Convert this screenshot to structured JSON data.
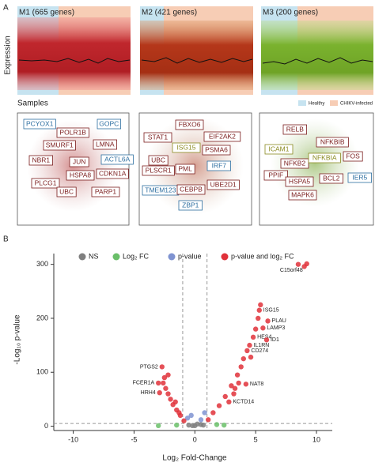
{
  "panel_a": {
    "label": "A",
    "y_label": "Expression",
    "x_label": "Samples",
    "legend": [
      "Healthy",
      "CHIKV-infected"
    ],
    "modules": [
      {
        "title": "M1 (665 genes)",
        "genes": [
          "PCYOX1",
          "POLR1B",
          "GOPC",
          "SMURF1",
          "LMNA",
          "NBR1",
          "JUN",
          "ACTL6A",
          "HSPA8",
          "CDKN1A",
          "PLCG1",
          "UBC",
          "PARP1"
        ]
      },
      {
        "title": "M2 (421 genes)",
        "genes": [
          "FBXO6",
          "STAT1",
          "EIF2AK2",
          "ISG15",
          "PSMA6",
          "UBC",
          "PLSCR1",
          "PML",
          "IRF7",
          "UBE2D1",
          "TMEM123",
          "CEBPB",
          "ZBP1"
        ]
      },
      {
        "title": "M3 (200 genes)",
        "genes": [
          "RELB",
          "ICAM1",
          "NFKBIB",
          "NFKB2",
          "NFKBIA",
          "FOS",
          "PPIF",
          "HSPA5",
          "BCL2",
          "IER5",
          "MAPK6"
        ]
      }
    ]
  },
  "chart_data": {
    "type": "scatter",
    "panel_label": "B",
    "xlabel": "Log₂ Fold-Change",
    "ylabel": "-Log₁₀ p-value",
    "xlim": [
      -11.6,
      11.3
    ],
    "ylim": [
      -8,
      320
    ],
    "xticks": [
      -10,
      -5,
      0,
      5,
      10
    ],
    "yticks": [
      0,
      100,
      200,
      300
    ],
    "threshold_x": [
      -1,
      1
    ],
    "threshold_y": 5,
    "series": [
      {
        "name": "NS",
        "color": "#7f7f7f",
        "x": [
          0,
          0.5,
          -0.5,
          0.2,
          -0.2,
          0.7
        ],
        "values": [
          1,
          3,
          2,
          4,
          1,
          2
        ]
      },
      {
        "name": "Log₂ FC",
        "color": "#6abf69",
        "x": [
          -1.5,
          1.8,
          -3,
          2.4
        ],
        "values": [
          2,
          3,
          1,
          2
        ]
      },
      {
        "name": "p-value",
        "color": "#7f93d1",
        "x": [
          -0.6,
          0.5,
          -0.3,
          0.8
        ],
        "values": [
          15,
          12,
          20,
          25
        ]
      },
      {
        "name": "p-value and log₂ FC",
        "color": "#e0313a",
        "x": [
          -0.9,
          -1.2,
          -1.5,
          -1.8,
          -2,
          -2.2,
          -2.4,
          -2.6,
          -2.5,
          -2.7,
          -2.2,
          -1.6,
          -1.3,
          -3,
          -2.9,
          1.1,
          1.5,
          2,
          2.5,
          3,
          3.5,
          3.8,
          4,
          4.3,
          4.5,
          4.8,
          5,
          5.2,
          5.3,
          5.4,
          6,
          5.6,
          5.9,
          4.6,
          4.2,
          3.6,
          3.2,
          2.8,
          3.3,
          8.5,
          9.2,
          9
        ],
        "values": [
          10,
          20,
          30,
          40,
          50,
          60,
          70,
          80,
          90,
          110,
          95,
          45,
          25,
          80,
          62,
          12,
          25,
          38,
          55,
          75,
          95,
          110,
          125,
          140,
          150,
          165,
          180,
          200,
          215,
          225,
          195,
          182,
          160,
          128,
          78,
          80,
          60,
          45,
          70,
          300,
          301,
          296
        ],
        "point_labels": [
          null,
          null,
          null,
          null,
          null,
          null,
          null,
          null,
          null,
          "PTGS2",
          null,
          null,
          null,
          "FCER1A",
          "HRH4",
          null,
          null,
          null,
          null,
          null,
          null,
          null,
          null,
          "CD274",
          "IL1RN",
          "HES4",
          null,
          null,
          "ISG15",
          null,
          "PLAU",
          "LAMP3",
          "ID1",
          null,
          "NAT8",
          null,
          null,
          "KCTD14",
          null,
          null,
          "C15orf48",
          null
        ]
      }
    ]
  }
}
